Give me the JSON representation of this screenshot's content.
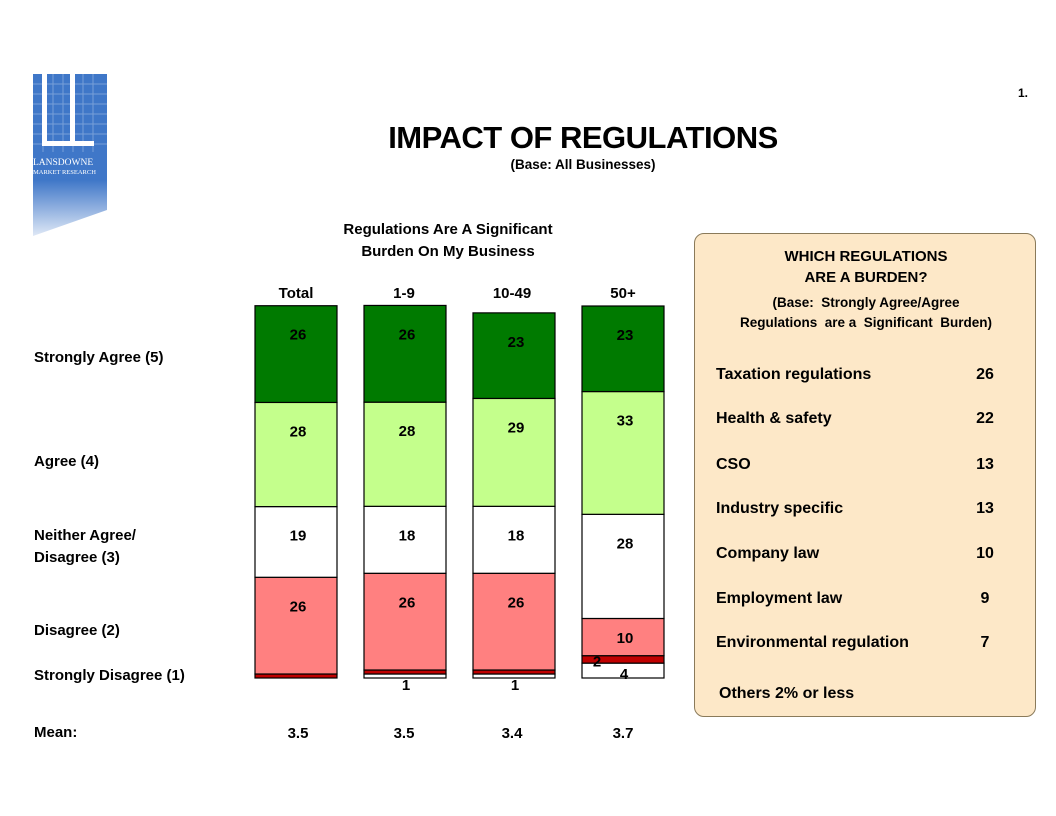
{
  "page_number": "1.",
  "title": "IMPACT OF REGULATIONS",
  "subtitle": "(Base: All Businesses)",
  "logo": {
    "line1": "LANSDOWNE",
    "line2": "MARKET RESEARCH"
  },
  "colors": {
    "strongly_agree": "#007a00",
    "agree": "#c4ff8c",
    "neither": "#ffffff",
    "disagree": "#ff8080",
    "strongly_disagree": "#c00000",
    "panel_bg": "#fde8c8",
    "logo_blue": "#3f77c8"
  },
  "chart_data": {
    "type": "bar",
    "stacked": true,
    "title_line1": "Regulations Are A Significant",
    "title_line2": "Burden On My Business",
    "categories": [
      "Total",
      "1-9",
      "10-49",
      "50+"
    ],
    "series": [
      {
        "name": "Strongly Agree (5)",
        "values": [
          26,
          26,
          23,
          23
        ]
      },
      {
        "name": "Agree (4)",
        "values": [
          28,
          28,
          29,
          33
        ]
      },
      {
        "name": "Neither Agree/ Disagree (3)",
        "values": [
          19,
          18,
          18,
          28
        ]
      },
      {
        "name": "Disagree (2)",
        "values": [
          26,
          26,
          26,
          10
        ]
      },
      {
        "name": "Strongly Disagree (1)",
        "values": [
          1,
          1,
          1,
          2
        ]
      },
      {
        "name": "",
        "values": [
          0,
          1,
          1,
          4
        ]
      }
    ],
    "row_labels": {
      "strongly_agree": "Strongly Agree (5)",
      "agree": "Agree (4)",
      "neither_line1": "Neither Agree/",
      "neither_line2": "Disagree (3)",
      "disagree": "Disagree (2)",
      "strongly_disagree": "Strongly Disagree (1)"
    },
    "mean_label": "Mean:",
    "means": [
      "3.5",
      "3.5",
      "3.4",
      "3.7"
    ]
  },
  "panel": {
    "title_line1": "WHICH REGULATIONS",
    "title_line2": "ARE A BURDEN?",
    "base_line1": "(Base:  Strongly Agree/Agree",
    "base_line2": "Regulations  are a  Significant  Burden)",
    "items": [
      {
        "name": "Taxation regulations",
        "value": "26"
      },
      {
        "name": "Health & safety",
        "value": "22"
      },
      {
        "name": "CSO",
        "value": "13"
      },
      {
        "name": "Industry specific",
        "value": "13"
      },
      {
        "name": "Company law",
        "value": "10"
      },
      {
        "name": "Employment law",
        "value": "9"
      },
      {
        "name": "Environmental regulation",
        "value": "7"
      }
    ],
    "others": "Others 2% or less"
  }
}
